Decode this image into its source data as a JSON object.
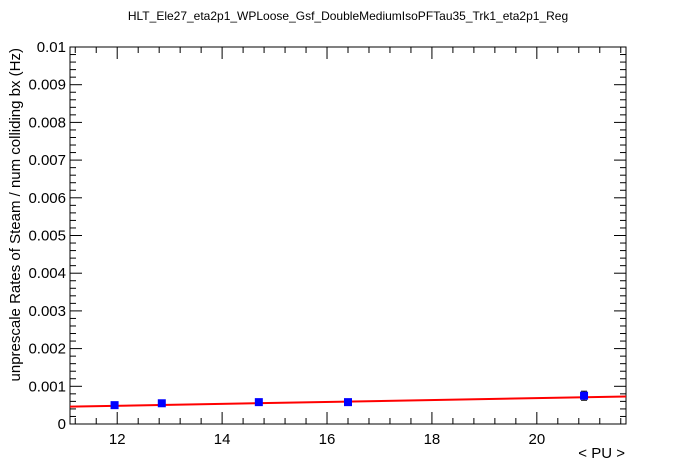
{
  "chart_data": {
    "type": "scatter",
    "title": "HLT_Ele27_eta2p1_WPLoose_Gsf_DoubleMediumIsoPFTau35_Trk1_eta2p1_Reg",
    "xlabel": "< PU >",
    "ylabel": "unprescale Rates of Steam / num colliding bx (Hz)",
    "xlim": [
      11.1,
      21.7
    ],
    "ylim": [
      0,
      0.01
    ],
    "x_ticks": [
      12,
      14,
      16,
      18,
      20
    ],
    "x_tick_labels": [
      "12",
      "14",
      "16",
      "18",
      "20"
    ],
    "y_ticks": [
      0,
      0.001,
      0.002,
      0.003,
      0.004,
      0.005,
      0.006,
      0.007,
      0.008,
      0.009,
      0.01
    ],
    "y_tick_labels": [
      "0",
      "0.001",
      "0.002",
      "0.003",
      "0.004",
      "0.005",
      "0.006",
      "0.007",
      "0.008",
      "0.009",
      "0.01"
    ],
    "grid": false,
    "series": [
      {
        "kind": "points",
        "color": "#0000ff",
        "x": [
          11.95,
          12.85,
          14.7,
          16.4,
          20.9
        ],
        "y": [
          0.0005,
          0.00055,
          0.00058,
          0.00058,
          0.00075
        ],
        "yerr": [
          3e-05,
          3e-05,
          3e-05,
          4e-05,
          0.00012
        ]
      },
      {
        "kind": "fit",
        "color": "#ff0000",
        "x": [
          11.1,
          21.7
        ],
        "y": [
          0.00046,
          0.00073
        ]
      }
    ]
  }
}
